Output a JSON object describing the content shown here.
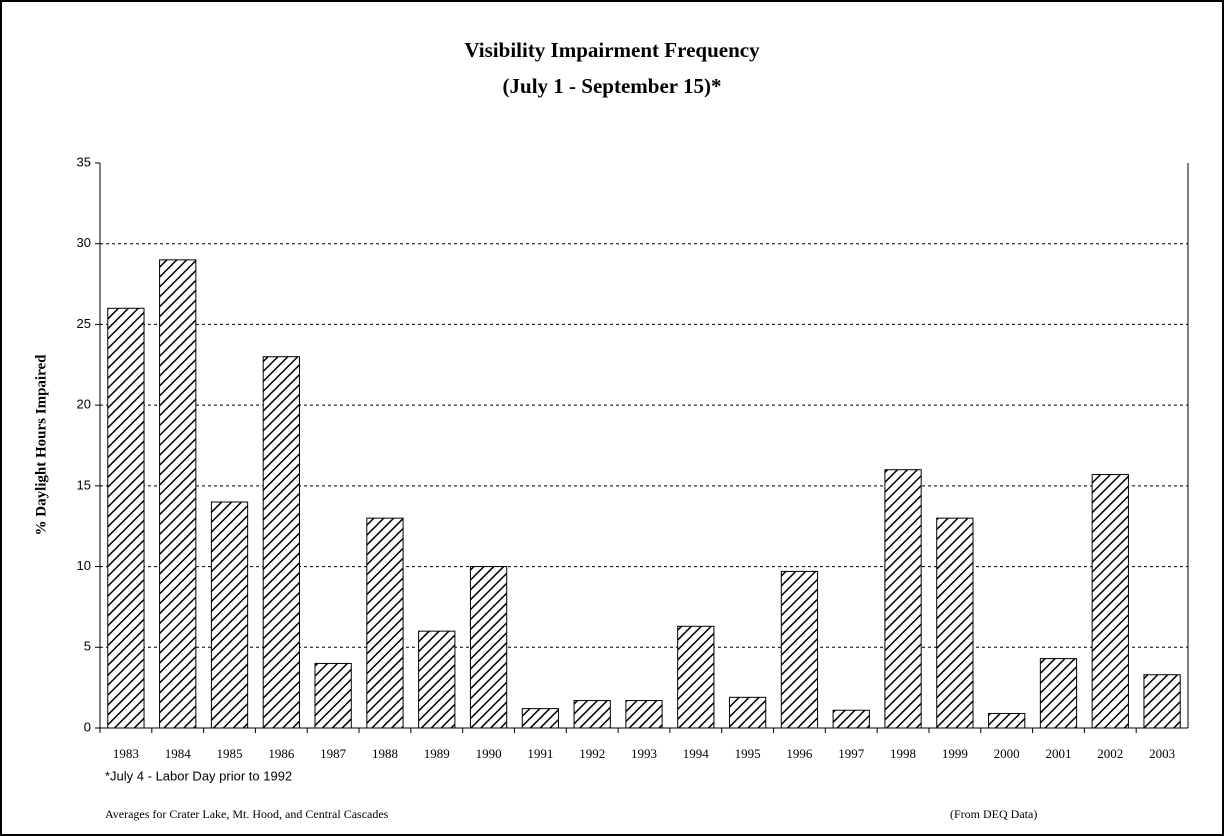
{
  "chart_data": {
    "type": "bar",
    "title": [
      "Visibility Impairment Frequency",
      "(July 1 - September 15)*"
    ],
    "y_label": "% Daylight Hours Impaired",
    "categories": [
      "1983",
      "1984",
      "1985",
      "1986",
      "1987",
      "1988",
      "1989",
      "1990",
      "1991",
      "1992",
      "1993",
      "1994",
      "1995",
      "1996",
      "1997",
      "1998",
      "1999",
      "2000",
      "2001",
      "2002",
      "2003"
    ],
    "values": [
      26,
      29,
      14,
      23,
      4,
      13,
      6,
      10,
      1.2,
      1.7,
      1.7,
      6.3,
      1.9,
      9.7,
      1.1,
      16,
      13,
      0.9,
      4.3,
      15.7,
      3.3
    ],
    "color": "#000000",
    "ylim": [
      0,
      35
    ],
    "yticks": [
      0,
      5,
      10,
      15,
      20,
      25,
      30,
      35
    ],
    "grid": true,
    "annotations": [
      "*July 4 - Labor Day prior to 1992",
      "Averages for Crater Lake, Mt. Hood, and Central Cascades",
      "(From DEQ Data)"
    ]
  }
}
